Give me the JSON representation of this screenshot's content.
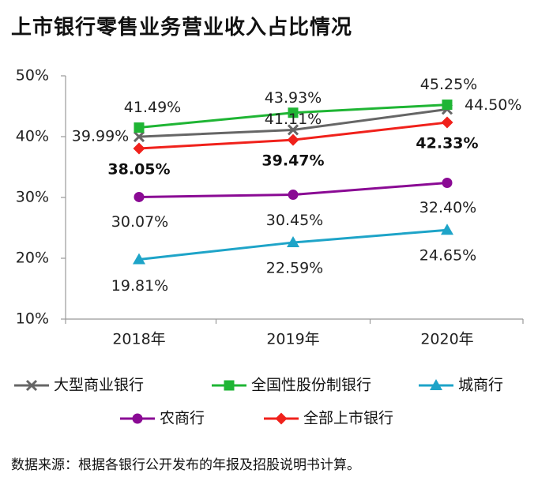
{
  "title": "上市银行零售业务营业收入占比情况",
  "source": "数据来源：根据各银行公开发布的年报及招股说明书计算。",
  "chart_data": {
    "type": "line",
    "title": "上市银行零售业务营业收入占比情况",
    "categories": [
      "2018年",
      "2019年",
      "2020年"
    ],
    "ylim": [
      10,
      50
    ],
    "yticks": [
      10,
      20,
      30,
      40,
      50
    ],
    "ytick_labels": [
      "10%",
      "20%",
      "30%",
      "40%",
      "50%"
    ],
    "grid": false,
    "legend_position": "bottom",
    "series": [
      {
        "name": "大型商业银行",
        "values": [
          39.99,
          41.11,
          44.5
        ],
        "labels": [
          "39.99%",
          "41.11%",
          "44.50%"
        ],
        "color": "#666666",
        "marker": "x",
        "bold_labels": false
      },
      {
        "name": "全国性股份制银行",
        "values": [
          41.49,
          43.93,
          45.25
        ],
        "labels": [
          "41.49%",
          "43.93%",
          "45.25%"
        ],
        "color": "#1fb534",
        "marker": "square",
        "bold_labels": false
      },
      {
        "name": "城商行",
        "values": [
          19.81,
          22.59,
          24.65
        ],
        "labels": [
          "19.81%",
          "22.59%",
          "24.65%"
        ],
        "color": "#1ea4c8",
        "marker": "triangle",
        "bold_labels": false
      },
      {
        "name": "农商行",
        "values": [
          30.07,
          30.45,
          32.4
        ],
        "labels": [
          "30.07%",
          "30.45%",
          "32.40%"
        ],
        "color": "#8a0a94",
        "marker": "circle",
        "bold_labels": false
      },
      {
        "name": "全部上市银行",
        "values": [
          38.05,
          39.47,
          42.33
        ],
        "labels": [
          "38.05%",
          "39.47%",
          "42.33%"
        ],
        "color": "#f0211b",
        "marker": "diamond",
        "bold_labels": true
      }
    ]
  }
}
